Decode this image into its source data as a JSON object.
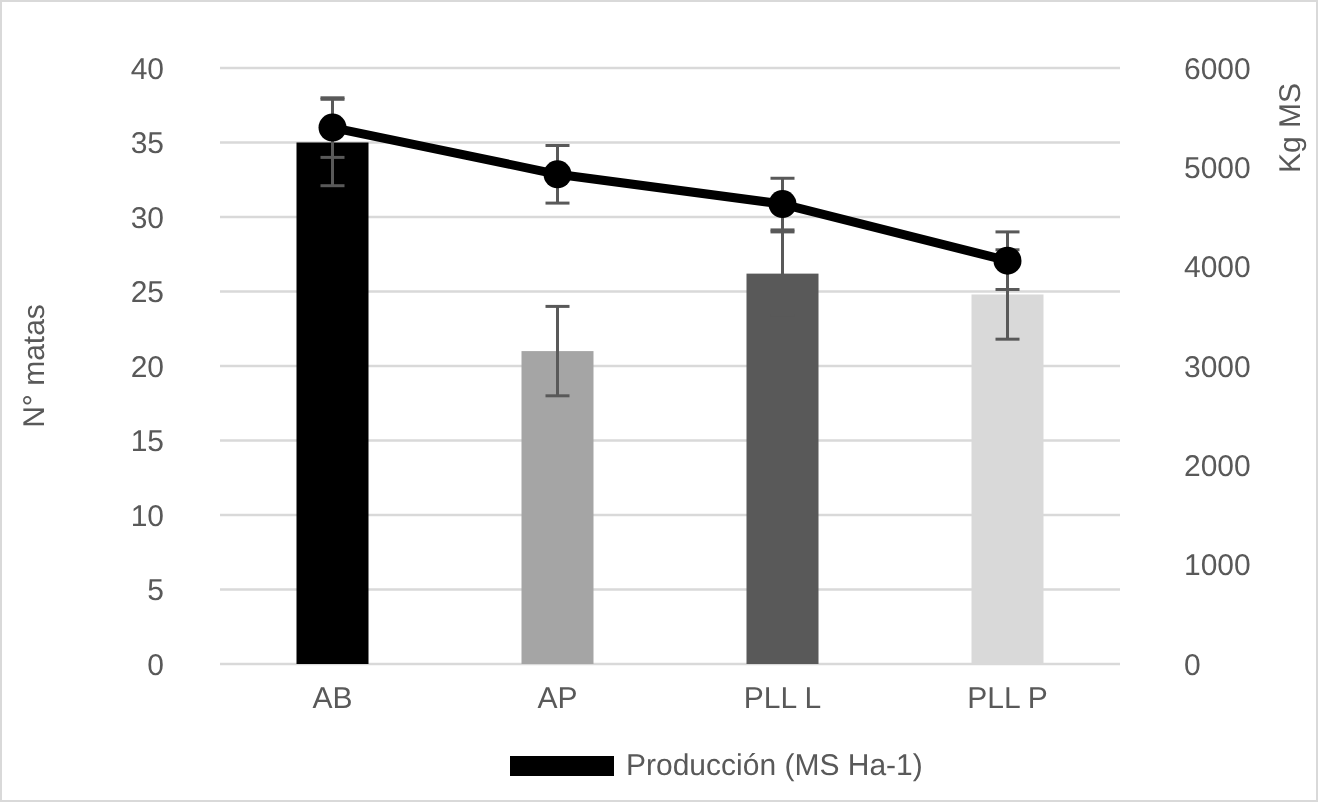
{
  "chart_data": {
    "type": "bar",
    "categories": [
      "AB",
      "AP",
      "PLL L",
      "PLL P"
    ],
    "ylabel": "N° matas",
    "y2label": "Kg MS",
    "series": [
      {
        "colors": [
          "#000000",
          "#a5a5a5",
          "#595959",
          "#d9d9d9"
        ],
        "values": [
          35,
          21,
          26.2,
          24.8
        ],
        "errors": [
          2.9,
          3,
          2.8,
          3
        ]
      },
      {
        "type": "line",
        "name": "Producción (MS Ha-1)",
        "axis": "y2",
        "color": "#000000",
        "values": [
          5400,
          4930,
          4630,
          4060
        ],
        "errors": [
          300,
          290,
          260,
          290
        ],
        "marker": "circle"
      }
    ],
    "ylim": [
      0,
      40
    ],
    "yticks": [
      0,
      5,
      10,
      15,
      20,
      25,
      30,
      35,
      40
    ],
    "y2lim": [
      0,
      6000
    ],
    "y2ticks": [
      0,
      1000,
      2000,
      3000,
      4000,
      5000,
      6000
    ],
    "grid": "y",
    "legend": "bottom"
  }
}
